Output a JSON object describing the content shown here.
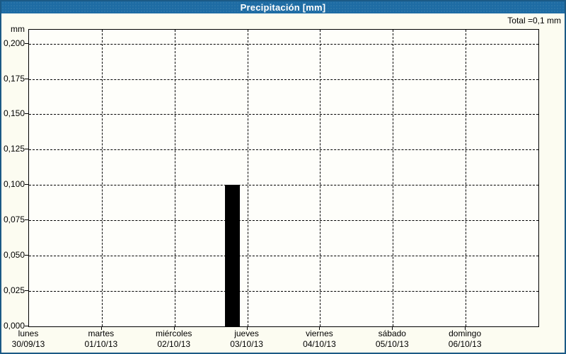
{
  "title_bar": {
    "title": "Precipitación [mm]"
  },
  "summary": {
    "total": "Total =0,1 mm"
  },
  "chart_data": {
    "type": "bar",
    "title": "Precipitación [mm]",
    "unit": "mm",
    "ylabel": "mm",
    "xlabel": "",
    "ylim": [
      0,
      0.2098
    ],
    "grid": "dashed",
    "legend": "none",
    "y_ticks": [
      {
        "value": 0.2,
        "label": "0,200"
      },
      {
        "value": 0.175,
        "label": "0,175"
      },
      {
        "value": 0.15,
        "label": "0,150"
      },
      {
        "value": 0.125,
        "label": "0,125"
      },
      {
        "value": 0.1,
        "label": "0,100"
      },
      {
        "value": 0.075,
        "label": "0,075"
      },
      {
        "value": 0.05,
        "label": "0,050"
      },
      {
        "value": 0.025,
        "label": "0,025"
      },
      {
        "value": 0.0,
        "label": "0,000"
      }
    ],
    "categories": [
      {
        "weekday": "lunes",
        "date": "30/09/13"
      },
      {
        "weekday": "martes",
        "date": "01/10/13"
      },
      {
        "weekday": "miércoles",
        "date": "02/10/13"
      },
      {
        "weekday": "jueves",
        "date": "03/10/13"
      },
      {
        "weekday": "viernes",
        "date": "04/10/13"
      },
      {
        "weekday": "sábado",
        "date": "05/10/13"
      },
      {
        "weekday": "domingo",
        "date": "06/10/13"
      }
    ],
    "bars": [
      {
        "day": "jueves 03/10/13",
        "value": 0.1,
        "x_day_frac": 2.693,
        "bar_width_days": 0.205
      }
    ],
    "total_mm": 0.1,
    "colors": {
      "bar": "#000000",
      "title_bg": "#1e6ca4",
      "title_text": "#ffffff",
      "panel_border": "#1b5a86",
      "background": "#fcfcf1",
      "plot_background": "#fefefa",
      "grid": "#000000"
    }
  }
}
